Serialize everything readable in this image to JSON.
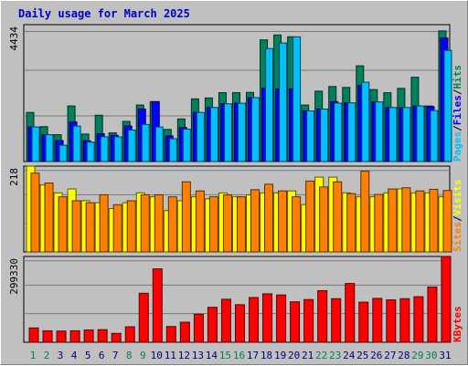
{
  "title": "Daily usage for March 2025",
  "colors": {
    "hits": "#00805c",
    "files": "#0000ff",
    "pages": "#00c0ff",
    "visits": "#ffff00",
    "sites": "#ff8000",
    "kbytes": "#ff0000",
    "weekday": "#000080",
    "weekend": "#00805c"
  },
  "chart_data": [
    {
      "type": "bar",
      "categories": [
        "1",
        "2",
        "3",
        "4",
        "5",
        "6",
        "7",
        "8",
        "9",
        "10",
        "11",
        "12",
        "13",
        "14",
        "15",
        "16",
        "17",
        "18",
        "19",
        "20",
        "21",
        "22",
        "23",
        "24",
        "25",
        "26",
        "27",
        "28",
        "29",
        "30",
        "31"
      ],
      "weekend_days": [
        "1",
        "2",
        "8",
        "9",
        "15",
        "16",
        "22",
        "23",
        "29",
        "30"
      ],
      "ylim": [
        0,
        4434
      ],
      "tick_label": "4434",
      "series": [
        {
          "name": "Hits",
          "values": [
            1590,
            1130,
            870,
            1800,
            890,
            1500,
            930,
            1300,
            1830,
            1940,
            1040,
            1380,
            2030,
            2060,
            2230,
            2230,
            2240,
            3940,
            4100,
            4040,
            1830,
            2280,
            2430,
            2400,
            3100,
            2330,
            2230,
            2370,
            2730,
            1800,
            4230
          ]
        },
        {
          "name": "Files",
          "values": [
            1120,
            870,
            680,
            1280,
            670,
            900,
            850,
            1150,
            1700,
            1940,
            830,
            1100,
            1590,
            1750,
            1870,
            1890,
            2070,
            2370,
            2350,
            2350,
            1640,
            1700,
            1940,
            1900,
            2470,
            1930,
            1750,
            1740,
            1800,
            1780,
            4000
          ]
        },
        {
          "name": "Pages",
          "values": [
            1120,
            870,
            530,
            1150,
            630,
            800,
            800,
            1020,
            1200,
            1120,
            740,
            1050,
            1590,
            1750,
            1870,
            1890,
            2070,
            3660,
            3840,
            4040,
            1640,
            1700,
            1890,
            1900,
            2570,
            1930,
            1750,
            1750,
            1800,
            1650,
            3600
          ]
        }
      ],
      "label_parts": [
        "Pages",
        "/",
        "Files",
        "/",
        "Hits"
      ]
    },
    {
      "type": "bar",
      "categories": [
        "1",
        "2",
        "3",
        "4",
        "5",
        "6",
        "7",
        "8",
        "9",
        "10",
        "11",
        "12",
        "13",
        "14",
        "15",
        "16",
        "17",
        "18",
        "19",
        "20",
        "21",
        "22",
        "23",
        "24",
        "25",
        "26",
        "27",
        "28",
        "29",
        "30",
        "31"
      ],
      "ylim": [
        0,
        218
      ],
      "tick_label": "218",
      "series": [
        {
          "name": "Visits",
          "values": [
            218,
            170,
            150,
            160,
            130,
            125,
            110,
            125,
            150,
            140,
            105,
            130,
            140,
            135,
            150,
            140,
            145,
            150,
            150,
            155,
            120,
            190,
            190,
            150,
            140,
            140,
            150,
            160,
            150,
            150,
            140
          ]
        },
        {
          "name": "Sites",
          "values": [
            200,
            175,
            140,
            130,
            125,
            145,
            120,
            130,
            145,
            145,
            140,
            178,
            155,
            140,
            145,
            140,
            158,
            172,
            155,
            140,
            180,
            165,
            178,
            148,
            205,
            146,
            160,
            163,
            155,
            159,
            156
          ]
        }
      ],
      "label_parts": [
        "Sites",
        "/",
        "Visits"
      ]
    },
    {
      "type": "bar",
      "categories": [
        "1",
        "2",
        "3",
        "4",
        "5",
        "6",
        "7",
        "8",
        "9",
        "10",
        "11",
        "12",
        "13",
        "14",
        "15",
        "16",
        "17",
        "18",
        "19",
        "20",
        "21",
        "22",
        "23",
        "24",
        "25",
        "26",
        "27",
        "28",
        "29",
        "30",
        "31"
      ],
      "ylim": [
        0,
        299330
      ],
      "tick_label": "299330",
      "series": [
        {
          "name": "KBytes",
          "values": [
            50000,
            40000,
            39000,
            40000,
            43000,
            44000,
            31000,
            54000,
            171000,
            256000,
            55000,
            70000,
            98000,
            122000,
            150000,
            131000,
            156000,
            169000,
            165000,
            141000,
            149000,
            180000,
            152000,
            205000,
            140000,
            153000,
            148000,
            152000,
            159000,
            193000,
            303000
          ]
        }
      ],
      "label_parts": [
        "KBytes"
      ]
    }
  ]
}
